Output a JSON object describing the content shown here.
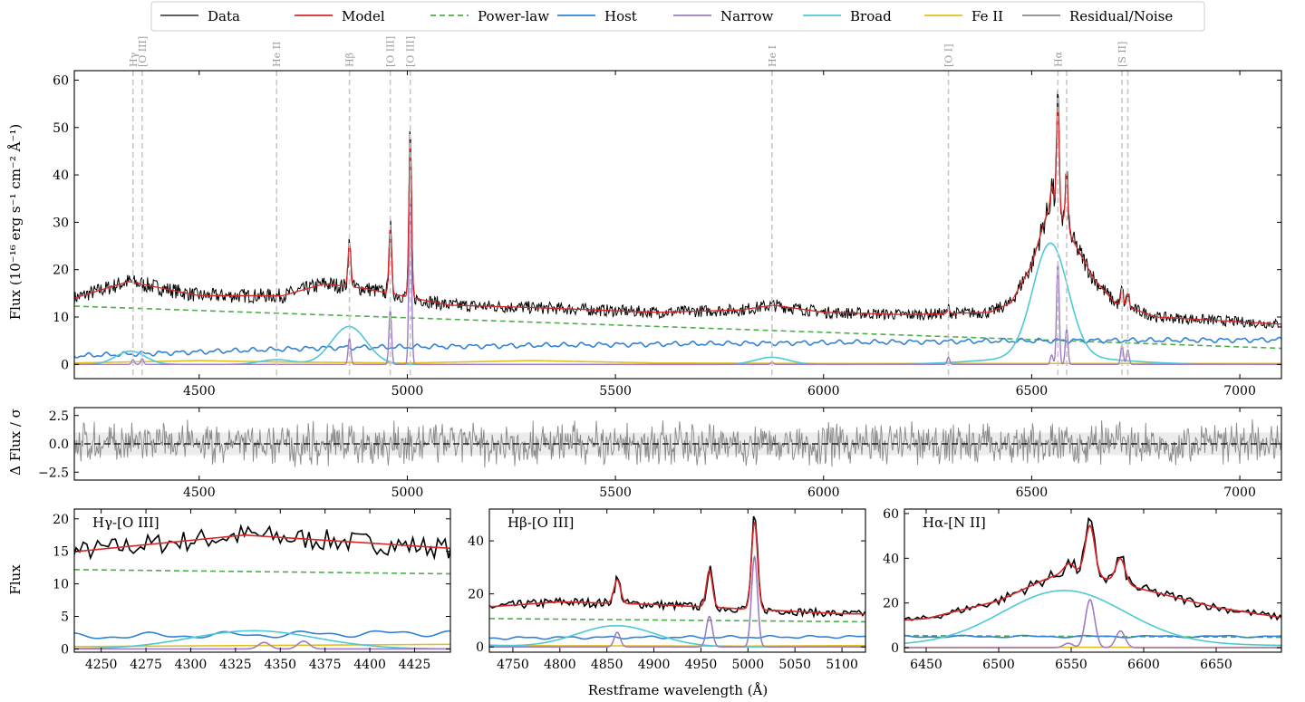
{
  "chart_data": {
    "type": "line",
    "legend": {
      "placement": "top-center",
      "entries": [
        {
          "name": "Data",
          "color": "#000000",
          "style": "solid"
        },
        {
          "name": "Model",
          "color": "#d62728",
          "style": "solid"
        },
        {
          "name": "Power-law",
          "color": "#4daf4a",
          "style": "dashed"
        },
        {
          "name": "Host",
          "color": "#3182d6",
          "style": "solid"
        },
        {
          "name": "Narrow",
          "color": "#a07cc5",
          "style": "solid"
        },
        {
          "name": "Broad",
          "color": "#4dc9d6",
          "style": "solid"
        },
        {
          "name": "Fe II",
          "color": "#e0c020",
          "style": "solid"
        },
        {
          "name": "Residual/Noise",
          "color": "#888888",
          "style": "solid"
        }
      ]
    },
    "main": {
      "ylabel": "Flux (10⁻¹⁶ erg s⁻¹ cm⁻² Å⁻¹)",
      "xlim": [
        4200,
        7100
      ],
      "ylim": [
        -3,
        62
      ],
      "xticks": [
        4500,
        5000,
        5500,
        6000,
        6500,
        7000
      ],
      "yticks": [
        0,
        10,
        20,
        30,
        40,
        50,
        60
      ],
      "emission_lines": [
        {
          "label": "Hγ",
          "x": 4341
        },
        {
          "label": "[O III]",
          "x": 4363
        },
        {
          "label": "He II",
          "x": 4686
        },
        {
          "label": "Hβ",
          "x": 4861
        },
        {
          "label": "[O III]",
          "x": 4959
        },
        {
          "label": "[O III]",
          "x": 5007
        },
        {
          "label": "He I",
          "x": 5876
        },
        {
          "label": "[O I]",
          "x": 6300
        },
        {
          "label": "Hα",
          "x": 6563
        },
        {
          "label": "[S II]",
          "x": 6717
        },
        {
          "label": "",
          "x": 6584
        },
        {
          "label": "",
          "x": 6731
        }
      ],
      "continuum_anchors": {
        "x": [
          4200,
          4330,
          4500,
          4700,
          4800,
          4900,
          5100,
          5300,
          5600,
          5800,
          5880,
          6000,
          6200,
          6400,
          6450,
          6500,
          6530,
          6550,
          6600,
          6650,
          6700,
          6800,
          7000,
          7100
        ],
        "model": [
          14,
          17.5,
          14.5,
          14.5,
          17,
          16,
          12.5,
          12,
          11,
          11.5,
          12.5,
          11,
          10.5,
          11,
          13,
          21,
          30,
          35,
          26,
          18,
          13,
          10,
          9,
          8.5
        ]
      },
      "series": [
        {
          "name": "Power-law",
          "x": [
            4200,
            7100
          ],
          "y": [
            12.3,
            3.4
          ]
        },
        {
          "name": "Host",
          "x": [
            4200,
            4800,
            5500,
            6000,
            6500,
            7100
          ],
          "y": [
            1.8,
            3.5,
            4.2,
            4.6,
            5.0,
            5.2
          ]
        },
        {
          "name": "Broad",
          "components": [
            {
              "center": 4335,
              "amp": 2.8,
              "sigma": 35
            },
            {
              "center": 4686,
              "amp": 1.0,
              "sigma": 40
            },
            {
              "center": 4860,
              "amp": 8.0,
              "sigma": 42
            },
            {
              "center": 5876,
              "amp": 1.5,
              "sigma": 40
            },
            {
              "center": 6545,
              "amp": 24.0,
              "sigma": 42
            },
            {
              "center": 6550,
              "amp": 1.6,
              "sigma": 150
            }
          ]
        },
        {
          "name": "Narrow",
          "components": [
            {
              "center": 4341,
              "amp": 1.0
            },
            {
              "center": 4363,
              "amp": 1.2
            },
            {
              "center": 4861,
              "amp": 5.5
            },
            {
              "center": 4959,
              "amp": 11.5
            },
            {
              "center": 5007,
              "amp": 34.0
            },
            {
              "center": 5876,
              "amp": 0.5
            },
            {
              "center": 6300,
              "amp": 1.5
            },
            {
              "center": 6548,
              "amp": 2.0
            },
            {
              "center": 6563,
              "amp": 21.5
            },
            {
              "center": 6584,
              "amp": 7.5
            },
            {
              "center": 6717,
              "amp": 4.0
            },
            {
              "center": 6731,
              "amp": 3.0
            }
          ]
        },
        {
          "name": "Fe II",
          "x": [
            4200,
            4500,
            4700,
            5000,
            5300,
            5600,
            6000,
            7100
          ],
          "y": [
            0.3,
            0.8,
            0.5,
            0.3,
            0.8,
            0.3,
            0.2,
            0.2
          ]
        }
      ]
    },
    "residual": {
      "ylabel": "Δ Flux / σ",
      "ylim": [
        -3.2,
        3.2
      ],
      "yticks": [
        -2.5,
        0.0,
        2.5
      ],
      "ytick_labels": [
        "−2.5",
        "0.0",
        "2.5"
      ],
      "band": [
        -1,
        1
      ],
      "xticks": [
        4500,
        5000,
        5500,
        6000,
        6500,
        7000
      ]
    },
    "zooms": [
      {
        "title": "Hγ-[O III]",
        "xlim": [
          4235,
          4445
        ],
        "ylim": [
          -0.5,
          21.5
        ],
        "xticks": [
          4250,
          4275,
          4300,
          4325,
          4350,
          4375,
          4400,
          4425
        ],
        "yticks": [
          0,
          5,
          10,
          15,
          20
        ]
      },
      {
        "title": "Hβ-[O III]",
        "xlim": [
          4725,
          5125
        ],
        "ylim": [
          -2,
          52
        ],
        "xticks": [
          4750,
          4800,
          4850,
          4900,
          4950,
          5000,
          5050,
          5100
        ],
        "yticks": [
          0,
          20,
          40
        ]
      },
      {
        "title": "Hα-[N II]",
        "xlim": [
          6435,
          6695
        ],
        "ylim": [
          -2,
          62
        ],
        "xticks": [
          6450,
          6500,
          6550,
          6600,
          6650
        ],
        "yticks": [
          0,
          20,
          40,
          60
        ]
      }
    ],
    "zoom_ylabel": "Flux",
    "xlabel": "Restframe wavelength (Å)"
  }
}
